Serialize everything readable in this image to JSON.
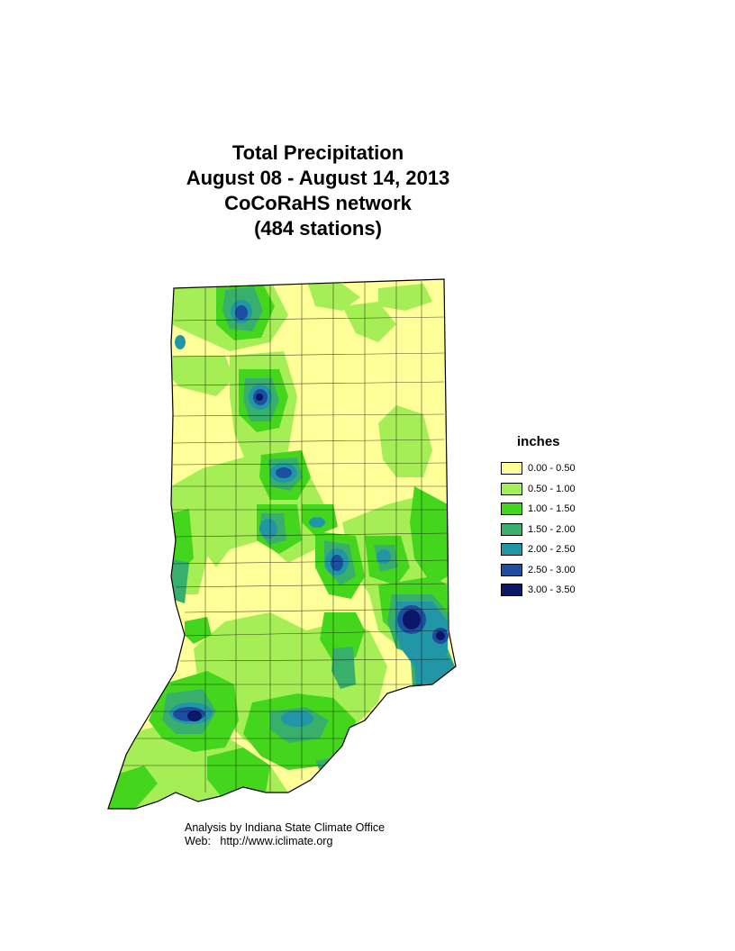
{
  "title": {
    "line1": "Total Precipitation",
    "line2": "August 08 - August 14, 2013",
    "line3": "CoCoRaHS network",
    "line4": "(484 stations)"
  },
  "legend": {
    "title": "inches",
    "items": [
      {
        "label": "0.00 - 0.50",
        "color": "#ffff99"
      },
      {
        "label": "0.50 - 1.00",
        "color": "#a6ee56"
      },
      {
        "label": "1.00 - 1.50",
        "color": "#44d61c"
      },
      {
        "label": "1.50 - 2.00",
        "color": "#38b06c"
      },
      {
        "label": "2.00 - 2.50",
        "color": "#2196a6"
      },
      {
        "label": "2.50 - 3.00",
        "color": "#1e4ea0"
      },
      {
        "label": "3.00 - 3.50",
        "color": "#0b1768"
      }
    ]
  },
  "credit": {
    "line1": "Analysis by Indiana State Climate Office",
    "line2": "Web:   http://www.iclimate.org"
  }
}
